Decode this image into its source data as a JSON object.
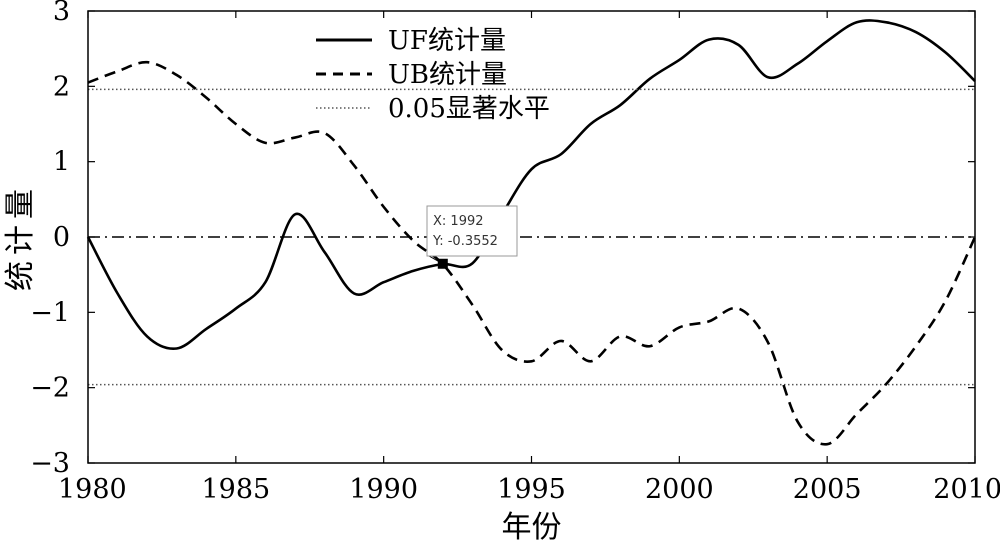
{
  "chart_data": {
    "type": "line",
    "xlabel": "年份",
    "ylabel": "统计量",
    "xlim": [
      1980,
      2010
    ],
    "ylim": [
      -3,
      3
    ],
    "x_ticks": [
      "1980",
      "1985",
      "1990",
      "1995",
      "2000",
      "2005",
      "2010"
    ],
    "y_ticks": [
      "3",
      "2",
      "1",
      "0",
      "−1",
      "−2",
      "−3"
    ],
    "grid": false,
    "legend_position": "top-center",
    "series": [
      {
        "name": "UF统计量",
        "style": "solid",
        "color": "#000000",
        "x": [
          1980,
          1981,
          1982,
          1983,
          1984,
          1985,
          1986,
          1987,
          1988,
          1989,
          1990,
          1991,
          1992,
          1993,
          1994,
          1995,
          1996,
          1997,
          1998,
          1999,
          2000,
          2001,
          2002,
          2003,
          2004,
          2005,
          2006,
          2007,
          2008,
          2009,
          2010
        ],
        "y": [
          0.0,
          -0.75,
          -1.32,
          -1.48,
          -1.22,
          -0.95,
          -0.6,
          0.3,
          -0.2,
          -0.75,
          -0.6,
          -0.45,
          -0.36,
          -0.35,
          0.3,
          0.9,
          1.1,
          1.5,
          1.75,
          2.1,
          2.35,
          2.62,
          2.55,
          2.12,
          2.3,
          2.6,
          2.85,
          2.85,
          2.72,
          2.45,
          2.07
        ]
      },
      {
        "name": "UB统计量",
        "style": "dashed",
        "color": "#000000",
        "x": [
          1980,
          1981,
          1982,
          1983,
          1984,
          1985,
          1986,
          1987,
          1988,
          1989,
          1990,
          1991,
          1992,
          1993,
          1994,
          1995,
          1996,
          1997,
          1998,
          1999,
          2000,
          2001,
          2002,
          2003,
          2004,
          2005,
          2006,
          2007,
          2008,
          2009,
          2010
        ],
        "y": [
          2.05,
          2.2,
          2.32,
          2.15,
          1.85,
          1.5,
          1.25,
          1.32,
          1.38,
          0.95,
          0.4,
          -0.05,
          -0.36,
          -0.9,
          -1.5,
          -1.65,
          -1.38,
          -1.65,
          -1.32,
          -1.45,
          -1.2,
          -1.12,
          -0.95,
          -1.4,
          -2.45,
          -2.75,
          -2.35,
          -1.95,
          -1.45,
          -0.85,
          0.0
        ]
      },
      {
        "name": "0.05显著水平",
        "style": "dotted",
        "color": "#555555",
        "x": [
          1980,
          2010
        ],
        "y": [
          1.96,
          1.96
        ]
      }
    ],
    "reference_lines": [
      {
        "y": -1.96,
        "style": "dotted",
        "color": "#555555"
      },
      {
        "y": 0,
        "style": "dashdot",
        "color": "#000000"
      }
    ],
    "annotation": {
      "x_label": "X: 1992",
      "y_label": "Y: -0.3552",
      "x": 1992,
      "y": -0.3552
    }
  }
}
